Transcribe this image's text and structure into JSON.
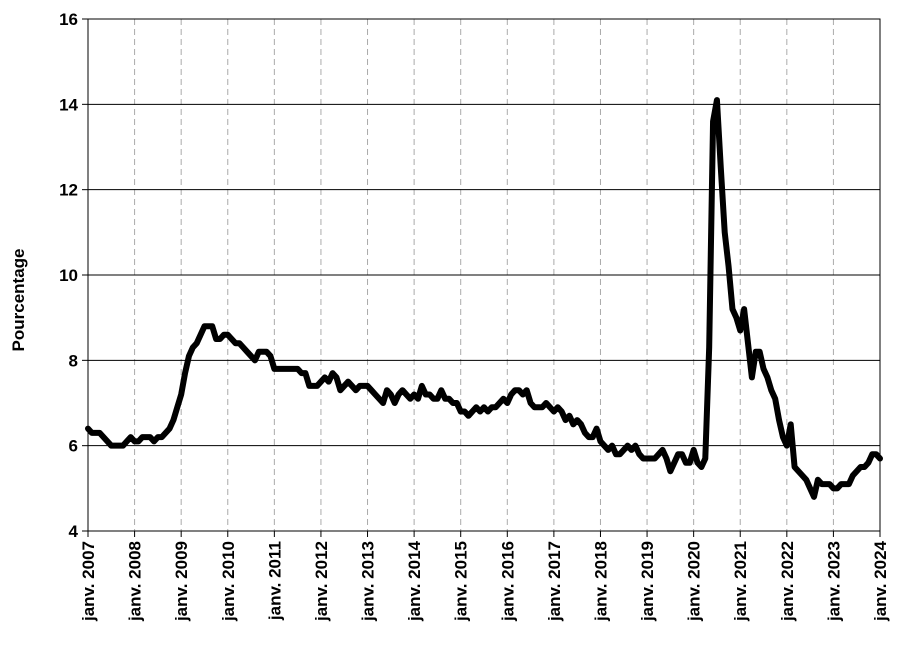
{
  "chart_data": {
    "type": "line",
    "ylabel": "Pourcentage",
    "categories": [
      "janv. 2007",
      null,
      null,
      null,
      null,
      null,
      null,
      null,
      null,
      null,
      null,
      null,
      "janv. 2008",
      null,
      null,
      null,
      null,
      null,
      null,
      null,
      null,
      null,
      null,
      null,
      "janv. 2009",
      null,
      null,
      null,
      null,
      null,
      null,
      null,
      null,
      null,
      null,
      null,
      "janv. 2010",
      null,
      null,
      null,
      null,
      null,
      null,
      null,
      null,
      null,
      null,
      null,
      "janv. 2011",
      null,
      null,
      null,
      null,
      null,
      null,
      null,
      null,
      null,
      null,
      null,
      "janv. 2012",
      null,
      null,
      null,
      null,
      null,
      null,
      null,
      null,
      null,
      null,
      null,
      "janv. 2013",
      null,
      null,
      null,
      null,
      null,
      null,
      null,
      null,
      null,
      null,
      null,
      "janv. 2014",
      null,
      null,
      null,
      null,
      null,
      null,
      null,
      null,
      null,
      null,
      null,
      "janv. 2015",
      null,
      null,
      null,
      null,
      null,
      null,
      null,
      null,
      null,
      null,
      null,
      "janv. 2016",
      null,
      null,
      null,
      null,
      null,
      null,
      null,
      null,
      null,
      null,
      null,
      "janv. 2017",
      null,
      null,
      null,
      null,
      null,
      null,
      null,
      null,
      null,
      null,
      null,
      "janv. 2018",
      null,
      null,
      null,
      null,
      null,
      null,
      null,
      null,
      null,
      null,
      null,
      "janv. 2019",
      null,
      null,
      null,
      null,
      null,
      null,
      null,
      null,
      null,
      null,
      null,
      "janv. 2020",
      null,
      null,
      null,
      null,
      null,
      null,
      null,
      null,
      null,
      null,
      null,
      "janv. 2021",
      null,
      null,
      null,
      null,
      null,
      null,
      null,
      null,
      null,
      null,
      null,
      "janv. 2022",
      null,
      null,
      null,
      null,
      null,
      null,
      null,
      null,
      null,
      null,
      null,
      "janv. 2023",
      null,
      null,
      null,
      null,
      null,
      null,
      null,
      null,
      null,
      null,
      null,
      "janv. 2024"
    ],
    "series": [
      {
        "color": "#000000",
        "values": [
          6.4,
          6.3,
          6.3,
          6.3,
          6.2,
          6.1,
          6.0,
          6.0,
          6.0,
          6.0,
          6.1,
          6.2,
          6.1,
          6.1,
          6.2,
          6.2,
          6.2,
          6.1,
          6.2,
          6.2,
          6.3,
          6.4,
          6.6,
          6.9,
          7.2,
          7.7,
          8.1,
          8.3,
          8.4,
          8.6,
          8.8,
          8.8,
          8.8,
          8.5,
          8.5,
          8.6,
          8.6,
          8.5,
          8.4,
          8.4,
          8.3,
          8.2,
          8.1,
          8.0,
          8.2,
          8.2,
          8.2,
          8.1,
          7.8,
          7.8,
          7.8,
          7.8,
          7.8,
          7.8,
          7.8,
          7.7,
          7.7,
          7.4,
          7.4,
          7.4,
          7.5,
          7.6,
          7.5,
          7.7,
          7.6,
          7.3,
          7.4,
          7.5,
          7.4,
          7.3,
          7.4,
          7.4,
          7.4,
          7.3,
          7.2,
          7.1,
          7.0,
          7.3,
          7.2,
          7.0,
          7.2,
          7.3,
          7.2,
          7.1,
          7.2,
          7.1,
          7.4,
          7.2,
          7.2,
          7.1,
          7.1,
          7.3,
          7.1,
          7.1,
          7.0,
          7.0,
          6.8,
          6.8,
          6.7,
          6.8,
          6.9,
          6.8,
          6.9,
          6.8,
          6.9,
          6.9,
          7.0,
          7.1,
          7.0,
          7.2,
          7.3,
          7.3,
          7.2,
          7.3,
          7.0,
          6.9,
          6.9,
          6.9,
          7.0,
          6.9,
          6.8,
          6.9,
          6.8,
          6.6,
          6.7,
          6.5,
          6.6,
          6.5,
          6.3,
          6.2,
          6.2,
          6.4,
          6.1,
          6.0,
          5.9,
          6.0,
          5.8,
          5.8,
          5.9,
          6.0,
          5.9,
          6.0,
          5.8,
          5.7,
          5.7,
          5.7,
          5.7,
          5.8,
          5.9,
          5.7,
          5.4,
          5.6,
          5.8,
          5.8,
          5.6,
          5.6,
          5.9,
          5.6,
          5.5,
          5.7,
          8.3,
          13.6,
          14.1,
          12.5,
          11.0,
          10.2,
          9.2,
          9.0,
          8.7,
          9.2,
          8.4,
          7.6,
          8.2,
          8.2,
          7.8,
          7.6,
          7.3,
          7.1,
          6.6,
          6.2,
          6.0,
          6.5,
          5.5,
          5.4,
          5.3,
          5.2,
          5.0,
          4.8,
          5.2,
          5.1,
          5.1,
          5.1,
          5.0,
          5.0,
          5.1,
          5.1,
          5.1,
          5.3,
          5.4,
          5.5,
          5.5,
          5.6,
          5.8,
          5.8,
          5.7
        ]
      }
    ],
    "ylim": [
      4,
      16
    ],
    "yticks": [
      4,
      6,
      8,
      10,
      12,
      14,
      16
    ],
    "grid": true
  }
}
